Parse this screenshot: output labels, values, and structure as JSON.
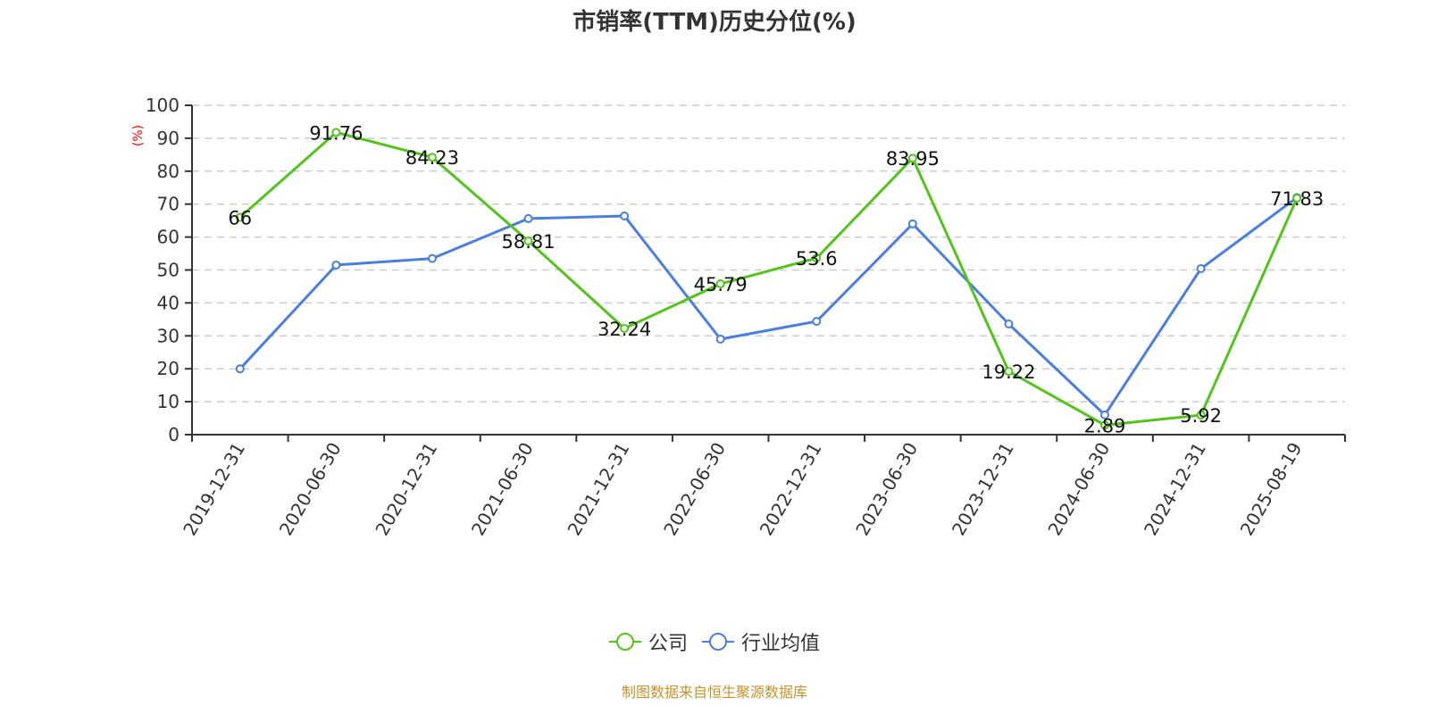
{
  "title": "市销率(TTM)历史分位(%)",
  "footer": "制图数据来自恒生聚源数据库",
  "legend": [
    {
      "name": "公司",
      "color": "#52c41a"
    },
    {
      "name": "行业均值",
      "color": "#4a7fe0"
    }
  ],
  "chart_data": {
    "type": "line",
    "title": "市销率(TTM)历史分位(%)",
    "xlabel": "",
    "ylabel": "(%)",
    "ylim": [
      0,
      100
    ],
    "yticks": [
      0,
      10,
      20,
      30,
      40,
      50,
      60,
      70,
      80,
      90,
      100
    ],
    "grid": "horizontal dashed",
    "legend_position": "bottom",
    "categories": [
      "2019-12-31",
      "2020-06-30",
      "2020-12-31",
      "2021-06-30",
      "2021-12-31",
      "2022-06-30",
      "2022-12-31",
      "2023-06-30",
      "2023-12-31",
      "2024-06-30",
      "2024-12-31",
      "2025-08-19"
    ],
    "series": [
      {
        "name": "公司",
        "color": "#52c41a",
        "values": [
          66,
          91.76,
          84.23,
          58.81,
          32.24,
          45.79,
          53.6,
          83.95,
          19.22,
          2.89,
          5.92,
          71.83
        ],
        "labels_shown": true
      },
      {
        "name": "行业均值",
        "color": "#4a7fe0",
        "values": [
          20,
          51.5,
          53.5,
          65.6,
          66.4,
          29.0,
          34.4,
          64.0,
          33.6,
          6.0,
          50.4,
          72.0
        ],
        "labels_shown": false
      }
    ]
  }
}
